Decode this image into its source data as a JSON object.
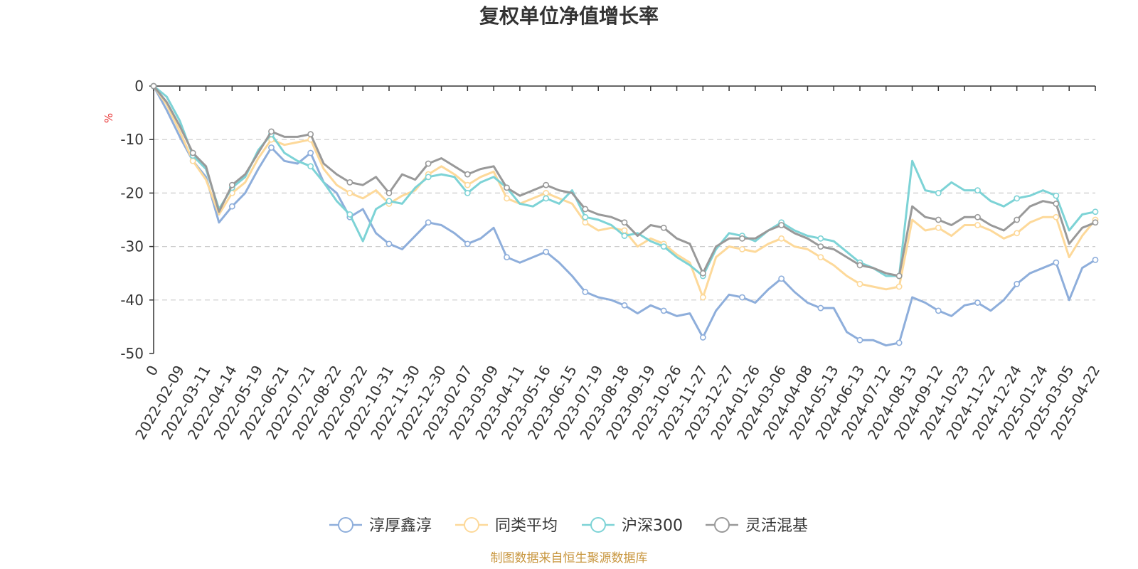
{
  "colors": {
    "fund": "#8eaedb",
    "peer": "#fdd99a",
    "index": "#7dd3d6",
    "mixed": "#999999",
    "axis": "#333333",
    "grid": "#cccccc",
    "unit": "#e83030",
    "source": "#c8963e"
  },
  "source_text": "制图数据来自恒生聚源数据库",
  "chart_data": {
    "type": "line",
    "title": "复权单位净值增长率",
    "ylabel": "%",
    "ylim": [
      -50,
      0
    ],
    "yticks": [
      0,
      -10,
      -20,
      -30,
      -40,
      -50
    ],
    "grid": true,
    "legend_position": "bottom-center",
    "x_tick_labels": [
      "0",
      "2022-02-09",
      "2022-03-11",
      "2022-04-14",
      "2022-05-19",
      "2022-06-21",
      "2022-07-21",
      "2022-08-22",
      "2022-09-22",
      "2022-10-31",
      "2022-11-30",
      "2022-12-30",
      "2023-02-07",
      "2023-03-09",
      "2023-04-11",
      "2023-05-16",
      "2023-06-15",
      "2023-07-19",
      "2023-08-18",
      "2023-09-19",
      "2023-10-26",
      "2023-11-27",
      "2023-12-27",
      "2024-01-26",
      "2024-03-06",
      "2024-04-08",
      "2024-05-13",
      "2024-06-13",
      "2024-07-12",
      "2024-08-13",
      "2024-09-12",
      "2024-10-23",
      "2024-11-22",
      "2024-12-24",
      "2025-01-24",
      "2025-03-05",
      "2025-04-22"
    ],
    "series": [
      {
        "name": "淳厚鑫淳",
        "color_key": "fund",
        "values": [
          0,
          -4.5,
          -9.5,
          -14,
          -17,
          -25.5,
          -22.5,
          -20,
          -15.5,
          -11.5,
          -14,
          -14.5,
          -12.5,
          -18,
          -20,
          -24.5,
          -23,
          -27.5,
          -29.5,
          -30.5,
          -28,
          -25.5,
          -26,
          -27.5,
          -29.5,
          -28.5,
          -26.5,
          -32,
          -33,
          -32,
          -31,
          -33,
          -35.5,
          -38.5,
          -39.5,
          -40,
          -41,
          -42.5,
          -41,
          -42,
          -43,
          -42.5,
          -47,
          -42,
          -39,
          -39.5,
          -40.5,
          -38,
          -36,
          -38.5,
          -40.5,
          -41.5,
          -41.5,
          -46,
          -47.5,
          -47.5,
          -48.5,
          -48,
          -39.5,
          -40.5,
          -42,
          -43,
          -41,
          -40.5,
          -42,
          -40,
          -37,
          -35,
          -34,
          -33,
          -40,
          -34,
          -32.5
        ]
      },
      {
        "name": "同类平均",
        "color_key": "peer",
        "values": [
          0,
          -3.5,
          -8.5,
          -14,
          -17.5,
          -24,
          -20,
          -18,
          -13.5,
          -10,
          -11,
          -10.5,
          -10,
          -15.5,
          -18.5,
          -20,
          -21,
          -19.5,
          -22,
          -20.5,
          -19.5,
          -16.5,
          -15,
          -16.5,
          -18.5,
          -17,
          -16,
          -21,
          -22,
          -21,
          -20,
          -21,
          -22,
          -25.5,
          -27,
          -26.5,
          -27,
          -30,
          -28.5,
          -29.5,
          -31.5,
          -33,
          -39.5,
          -32,
          -30,
          -30.5,
          -31,
          -29.5,
          -28.5,
          -30,
          -30.5,
          -32,
          -33.5,
          -35.5,
          -37,
          -37.5,
          -38,
          -37.5,
          -25,
          -27,
          -26.5,
          -28,
          -26,
          -26,
          -27,
          -28.5,
          -27.5,
          -25.5,
          -24.5,
          -24.5,
          -32,
          -28,
          -25
        ]
      },
      {
        "name": "沪深300",
        "color_key": "index",
        "values": [
          0,
          -2,
          -6.5,
          -13,
          -15.5,
          -23,
          -19,
          -17,
          -12,
          -9,
          -12.5,
          -14,
          -15,
          -18,
          -21.5,
          -24,
          -29,
          -23,
          -21.5,
          -22,
          -19,
          -17,
          -16.5,
          -17,
          -20,
          -18,
          -17,
          -19,
          -22,
          -22.5,
          -21,
          -22,
          -19.5,
          -24.5,
          -25,
          -26,
          -28,
          -27.5,
          -29,
          -30,
          -32,
          -33.5,
          -35.5,
          -30.5,
          -27.5,
          -28,
          -29,
          -27,
          -25.5,
          -27,
          -28,
          -28.5,
          -29,
          -31,
          -33,
          -34,
          -35.5,
          -35.5,
          -14,
          -19.5,
          -20,
          -18,
          -19.5,
          -19.5,
          -21.5,
          -22.5,
          -21,
          -20.5,
          -19.5,
          -20.5,
          -27,
          -24,
          -23.5
        ]
      },
      {
        "name": "灵活混基",
        "color_key": "mixed",
        "values": [
          0,
          -3,
          -7.5,
          -12.5,
          -15,
          -23.5,
          -18.5,
          -16.5,
          -12.5,
          -8.5,
          -9.5,
          -9.5,
          -9,
          -14.5,
          -16.5,
          -18,
          -18.5,
          -17,
          -20,
          -16.5,
          -17.5,
          -14.5,
          -13.5,
          -15,
          -16.5,
          -15.5,
          -15,
          -19,
          -20.5,
          -19.5,
          -18.5,
          -19.5,
          -20,
          -23,
          -24,
          -24.5,
          -25.5,
          -28,
          -26,
          -26.5,
          -28.5,
          -29.5,
          -35,
          -30,
          -28.5,
          -28.5,
          -28.5,
          -27,
          -26,
          -27.5,
          -28.5,
          -30,
          -30.5,
          -32,
          -33.5,
          -34,
          -35,
          -35.5,
          -22.5,
          -24.5,
          -25,
          -26,
          -24.5,
          -24.5,
          -26,
          -27,
          -25,
          -22.5,
          -21.5,
          -22,
          -29.5,
          -26.5,
          -25.5
        ]
      }
    ]
  }
}
